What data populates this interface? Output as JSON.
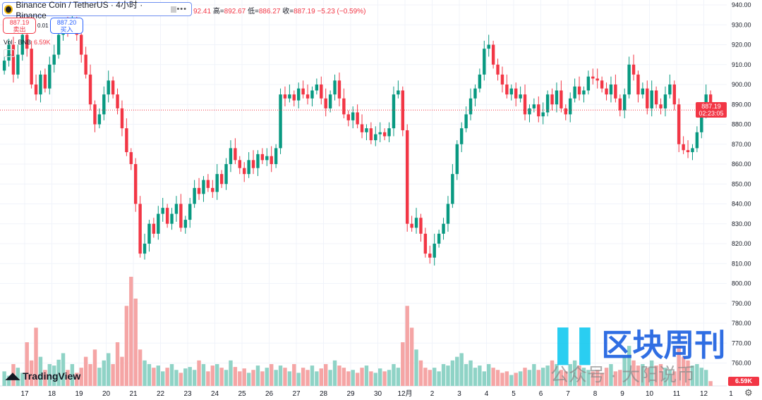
{
  "legend": {
    "symbol": "Binance Coin / TetherUS · 4小时 · Binance",
    "more": "•••"
  },
  "ohlc": {
    "open_partial": "92.41",
    "high_label": "高=",
    "high": "892.67",
    "low_label": "低=",
    "low": "886.27",
    "close_label": "收=",
    "close": "887.19",
    "change": "−5.23 (−0.59%)"
  },
  "trade": {
    "sell_price": "887.19",
    "sell_label": "卖出",
    "spread": "0.01",
    "buy_price": "887.20",
    "buy_label": "买入"
  },
  "volume_legend": {
    "label": "Vol · BNB",
    "value": "6.59K"
  },
  "branding": {
    "logo": "TradingView"
  },
  "price_tag": {
    "price": "887.19",
    "countdown": "02:23:05"
  },
  "volume_tag": "6.59K",
  "watermark": {
    "title": "区块周刊",
    "subtitle": "公众号 · 大阳说币"
  },
  "colors": {
    "up": "#089981",
    "down": "#f23645",
    "vol_up": "#8fd3c6",
    "vol_down": "#f5a5a5"
  },
  "chart_data": {
    "type": "candlestick",
    "y_ticks": [
      "940.00",
      "930.00",
      "920.00",
      "910.00",
      "900.00",
      "890.00",
      "880.00",
      "870.00",
      "860.00",
      "850.00",
      "840.00",
      "830.00",
      "820.00",
      "810.00",
      "800.00",
      "790.00",
      "780.00",
      "770.00",
      "760.00"
    ],
    "ylim": [
      760,
      940
    ],
    "x_ticks": [
      "17",
      "18",
      "19",
      "20",
      "21",
      "22",
      "23",
      "24",
      "25",
      "26",
      "27",
      "28",
      "29",
      "30",
      "12月",
      "2",
      "3",
      "4",
      "5",
      "6",
      "7",
      "8",
      "9",
      "10",
      "11",
      "12",
      "1"
    ],
    "grid": true,
    "closes": [
      912,
      920,
      905,
      915,
      925,
      918,
      900,
      895,
      905,
      898,
      910,
      915,
      925,
      930,
      928,
      932,
      925,
      915,
      905,
      890,
      880,
      885,
      895,
      902,
      895,
      888,
      878,
      866,
      860,
      840,
      815,
      820,
      830,
      825,
      835,
      838,
      830,
      835,
      840,
      828,
      832,
      840,
      848,
      845,
      852,
      848,
      846,
      855,
      850,
      860,
      868,
      862,
      858,
      855,
      862,
      858,
      865,
      862,
      864,
      860,
      868,
      895,
      893,
      895,
      892,
      898,
      895,
      893,
      897,
      900,
      893,
      888,
      895,
      902,
      893,
      885,
      882,
      886,
      880,
      876,
      878,
      872,
      875,
      876,
      874,
      878,
      895,
      897,
      877,
      830,
      828,
      833,
      825,
      815,
      813,
      820,
      825,
      830,
      840,
      855,
      870,
      878,
      885,
      893,
      898,
      905,
      918,
      920,
      910,
      905,
      900,
      895,
      898,
      893,
      895,
      885,
      888,
      890,
      884,
      886,
      895,
      890,
      897,
      888,
      885,
      893,
      899,
      895,
      897,
      904,
      903,
      902,
      898,
      895,
      900,
      893,
      887,
      895,
      910,
      905,
      895,
      898,
      888,
      897,
      890,
      888,
      895,
      900,
      890,
      870,
      867,
      866,
      868,
      876,
      887,
      895,
      887.19
    ],
    "volumes_k": [
      20,
      14,
      30,
      25,
      18,
      60,
      35,
      80,
      40,
      22,
      30,
      28,
      36,
      45,
      22,
      30,
      18,
      25,
      40,
      30,
      50,
      25,
      35,
      45,
      30,
      60,
      40,
      110,
      150,
      120,
      50,
      35,
      30,
      25,
      28,
      20,
      25,
      30,
      22,
      18,
      24,
      26,
      22,
      35,
      30,
      20,
      28,
      30,
      25,
      22,
      35,
      26,
      20,
      24,
      18,
      22,
      28,
      20,
      25,
      30,
      22,
      28,
      25,
      20,
      30,
      18,
      25,
      22,
      28,
      20,
      24,
      30,
      22,
      35,
      28,
      25,
      20,
      22,
      18,
      25,
      28,
      20,
      18,
      24,
      20,
      22,
      30,
      25,
      60,
      110,
      80,
      50,
      35,
      25,
      22,
      25,
      20,
      30,
      28,
      35,
      40,
      45,
      30,
      35,
      25,
      28,
      20,
      30,
      25,
      22,
      18,
      20,
      15,
      18,
      20,
      25,
      22,
      30,
      22,
      25,
      28,
      35,
      30,
      22,
      20,
      30,
      35,
      28,
      25,
      22,
      20,
      22,
      18,
      25,
      30,
      20,
      22,
      40,
      55,
      35,
      28,
      30,
      25,
      35,
      28,
      30,
      25,
      22,
      20,
      55,
      40,
      35,
      28,
      30,
      25,
      22,
      6.59
    ]
  }
}
